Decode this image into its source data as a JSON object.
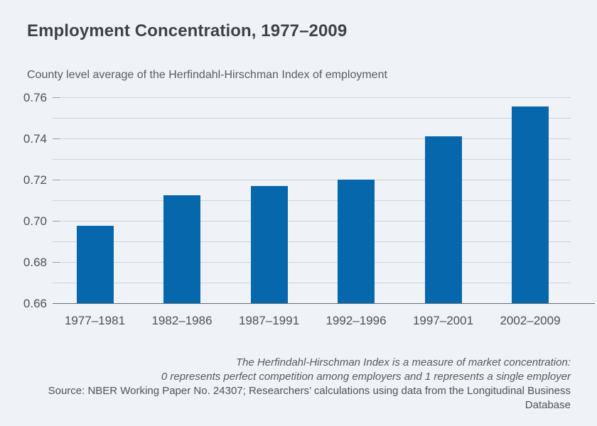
{
  "header": {
    "title": "Employment Concentration, 1977–2009",
    "subtitle": "County level average of the Herfindahl-Hirschman Index of employment"
  },
  "chart_data": {
    "type": "bar",
    "title": "Employment Concentration, 1977–2009",
    "subtitle": "County level average of the Herfindahl-Hirschman Index of employment",
    "categories": [
      "1977–1981",
      "1982–1986",
      "1987–1991",
      "1992–1996",
      "1997–2001",
      "2002–2009"
    ],
    "values": [
      0.6975,
      0.7125,
      0.717,
      0.72,
      0.741,
      0.7555
    ],
    "xlabel": "",
    "ylabel": "",
    "ylim": [
      0.66,
      0.76
    ],
    "ytick_step": 0.02,
    "grid_step": 0.01,
    "grid": true,
    "legend": false,
    "bar_color": "#0667ac"
  },
  "footer": {
    "note_line1": "The Herfindahl-Hirschman Index is a measure of market concentration:",
    "note_line2": "0 represents perfect competition among employers and 1 represents a single employer",
    "source": "Source: NBER Working Paper No. 24307; Researchers’ calculations using data from the Longitudinal Business Database"
  },
  "colors": {
    "background": "#eff3f8",
    "bar": "#0667ac",
    "title_text": "#3e4349",
    "subtitle_text": "#585c61",
    "axis_text": "#4c5156",
    "gridline": "#cdd3d9",
    "axis_line": "#686d73"
  }
}
